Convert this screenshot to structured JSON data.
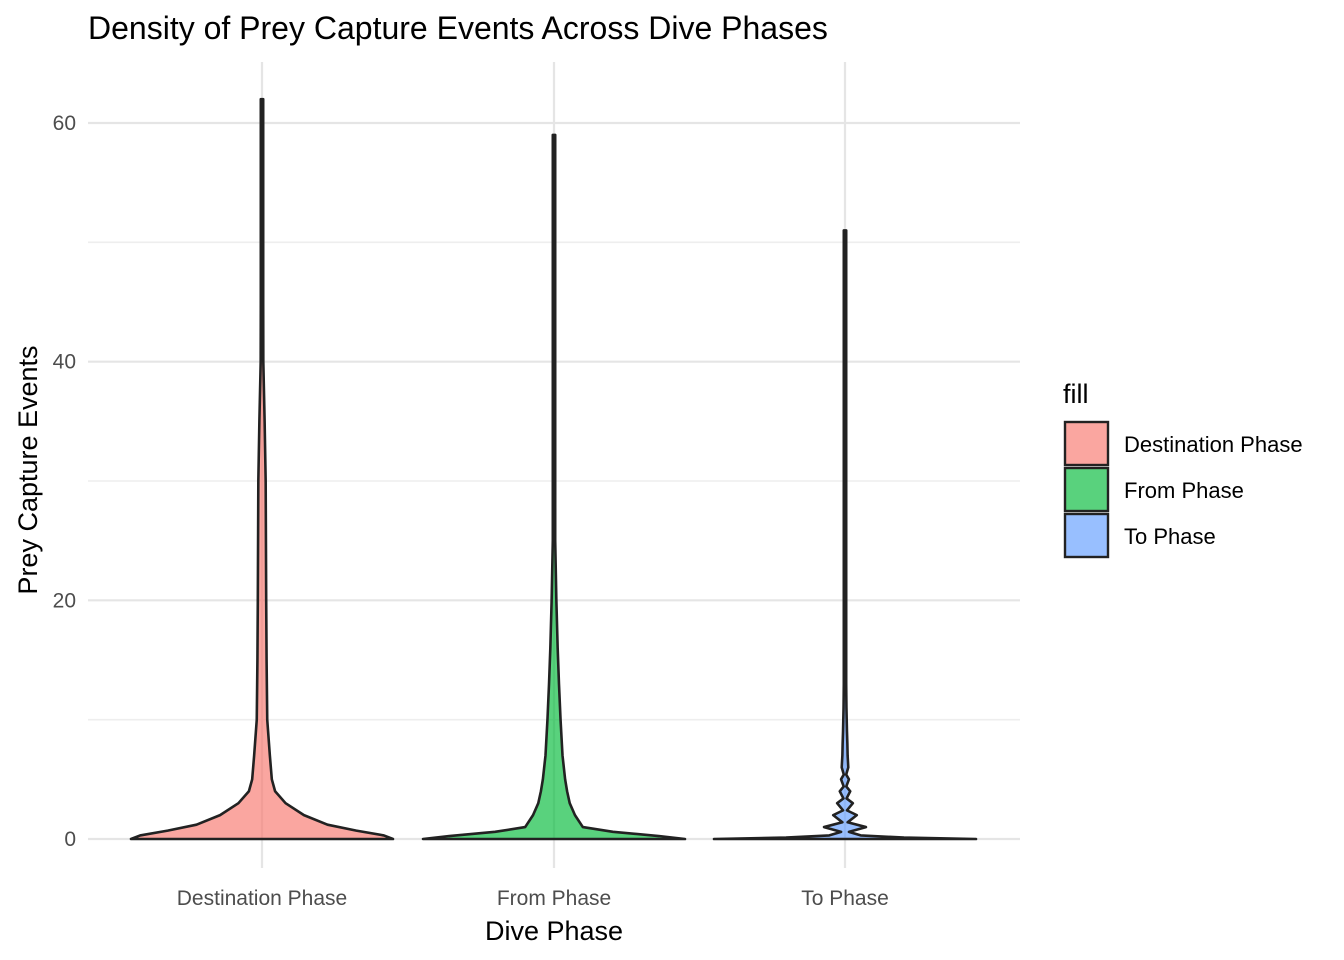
{
  "chart_data": {
    "type": "violin",
    "title": "Density of Prey Capture Events Across Dive Phases",
    "xlabel": "Dive Phase",
    "ylabel": "Prey Capture Events",
    "categories": [
      "Destination Phase",
      "From Phase",
      "To Phase"
    ],
    "ylim": [
      -2.5,
      65
    ],
    "yticks": [
      0,
      20,
      40,
      60
    ],
    "grid": true,
    "legend": {
      "title": "fill",
      "position": "right",
      "entries": [
        {
          "label": "Destination Phase",
          "color": "#F8766D"
        },
        {
          "label": "From Phase",
          "color": "#00BA38"
        },
        {
          "label": "To Phase",
          "color": "#619CFF"
        }
      ]
    },
    "series": [
      {
        "name": "Destination Phase",
        "color": "#F8766D",
        "min": 0,
        "max": 62,
        "density_profile": [
          [
            0,
            1.0
          ],
          [
            0.3,
            0.93
          ],
          [
            0.7,
            0.72
          ],
          [
            1.2,
            0.5
          ],
          [
            2,
            0.32
          ],
          [
            3,
            0.18
          ],
          [
            4,
            0.1
          ],
          [
            5,
            0.075
          ],
          [
            7,
            0.06
          ],
          [
            10,
            0.04
          ],
          [
            15,
            0.035
          ],
          [
            20,
            0.032
          ],
          [
            30,
            0.028
          ],
          [
            35,
            0.02
          ],
          [
            40,
            0.01
          ],
          [
            45,
            0.005
          ],
          [
            50,
            0.004
          ],
          [
            62,
            0.003
          ]
        ]
      },
      {
        "name": "From Phase",
        "color": "#00BA38",
        "min": 0,
        "max": 59,
        "density_profile": [
          [
            0,
            1.0
          ],
          [
            0.25,
            0.8
          ],
          [
            0.6,
            0.45
          ],
          [
            1.0,
            0.22
          ],
          [
            2,
            0.16
          ],
          [
            3,
            0.12
          ],
          [
            4,
            0.1
          ],
          [
            5,
            0.085
          ],
          [
            7,
            0.065
          ],
          [
            10,
            0.05
          ],
          [
            13,
            0.038
          ],
          [
            16,
            0.028
          ],
          [
            20,
            0.018
          ],
          [
            25,
            0.008
          ],
          [
            30,
            0.004
          ],
          [
            40,
            0.003
          ],
          [
            59,
            0.003
          ]
        ]
      },
      {
        "name": "To Phase",
        "color": "#619CFF",
        "min": 0,
        "max": 51,
        "density_profile": [
          [
            0,
            1.0
          ],
          [
            0.12,
            0.45
          ],
          [
            0.3,
            0.12
          ],
          [
            0.6,
            0.03
          ],
          [
            1,
            0.16
          ],
          [
            1.4,
            0.02
          ],
          [
            2,
            0.09
          ],
          [
            2.4,
            0.015
          ],
          [
            3,
            0.06
          ],
          [
            3.4,
            0.012
          ],
          [
            4,
            0.04
          ],
          [
            4.4,
            0.01
          ],
          [
            5,
            0.03
          ],
          [
            5.4,
            0.008
          ],
          [
            6,
            0.025
          ],
          [
            7,
            0.02
          ],
          [
            8,
            0.018
          ],
          [
            9,
            0.015
          ],
          [
            10,
            0.013
          ],
          [
            11,
            0.011
          ],
          [
            12,
            0.01
          ],
          [
            13,
            0.009
          ],
          [
            15,
            0.006
          ],
          [
            20,
            0.004
          ],
          [
            51,
            0.003
          ]
        ]
      }
    ]
  }
}
